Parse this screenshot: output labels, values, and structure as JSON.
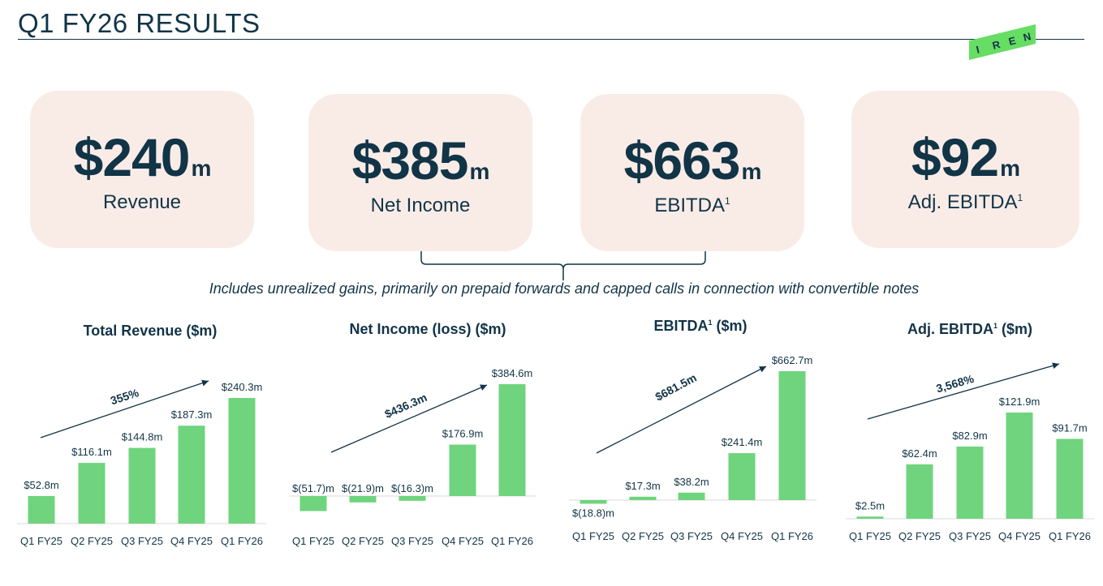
{
  "header": {
    "title": "Q1 FY26 RESULTS",
    "logo_text": [
      "I",
      "R",
      "E",
      "N"
    ]
  },
  "colors": {
    "navy": "#123447",
    "bar_green": "#6fd47d",
    "logo_green": "#66dd63",
    "card_bg": "#f9ece7"
  },
  "cards": [
    {
      "value": "$240",
      "unit": "m",
      "label": "Revenue",
      "sup": ""
    },
    {
      "value": "$385",
      "unit": "m",
      "label": "Net Income",
      "sup": ""
    },
    {
      "value": "$663",
      "unit": "m",
      "label": "EBITDA",
      "sup": "1"
    },
    {
      "value": "$92",
      "unit": "m",
      "label": "Adj. EBITDA",
      "sup": "1"
    }
  ],
  "note": "Includes unrealized gains, primarily on prepaid forwards and capped calls in connection with convertible notes",
  "chart_data": [
    {
      "type": "bar",
      "title": "Total Revenue ($m)",
      "title_sup": "",
      "categories": [
        "Q1 FY25",
        "Q2 FY25",
        "Q3 FY25",
        "Q4 FY25",
        "Q1 FY26"
      ],
      "values": [
        52.8,
        116.1,
        144.8,
        187.3,
        240.3
      ],
      "labels": [
        "$52.8m",
        "$116.1m",
        "$144.8m",
        "$187.3m",
        "$240.3m"
      ],
      "growth_label": "355%",
      "ylim": [
        0,
        240.3
      ]
    },
    {
      "type": "bar",
      "title": "Net Income (loss) ($m)",
      "title_sup": "",
      "categories": [
        "Q1 FY25",
        "Q2 FY25",
        "Q3 FY25",
        "Q4 FY25",
        "Q1 FY26"
      ],
      "values": [
        -51.7,
        -21.9,
        -16.3,
        176.9,
        384.6
      ],
      "labels": [
        "$(51.7)m",
        "$(21.9)m",
        "$(16.3)m",
        "$176.9m",
        "$384.6m"
      ],
      "growth_label": "$436.3m",
      "ylim": [
        -51.7,
        384.6
      ]
    },
    {
      "type": "bar",
      "title": "EBITDA",
      "title_sup": "1",
      "title_suffix": " ($m)",
      "categories": [
        "Q1 FY25",
        "Q2 FY25",
        "Q3 FY25",
        "Q4 FY25",
        "Q1 FY26"
      ],
      "values": [
        -18.8,
        17.3,
        38.2,
        241.4,
        662.7
      ],
      "labels": [
        "$(18.8)m",
        "$17.3m",
        "$38.2m",
        "$241.4m",
        "$662.7m"
      ],
      "growth_label": "$681.5m",
      "ylim": [
        -18.8,
        662.7
      ]
    },
    {
      "type": "bar",
      "title": "Adj. EBITDA",
      "title_sup": "1",
      "title_suffix": " ($m)",
      "categories": [
        "Q1 FY25",
        "Q2 FY25",
        "Q3 FY25",
        "Q4 FY25",
        "Q1 FY26"
      ],
      "values": [
        2.5,
        62.4,
        82.9,
        121.9,
        91.7
      ],
      "labels": [
        "$2.5m",
        "$62.4m",
        "$82.9m",
        "$121.9m",
        "$91.7m"
      ],
      "growth_label": "3,568%",
      "ylim": [
        0,
        121.9
      ]
    }
  ]
}
